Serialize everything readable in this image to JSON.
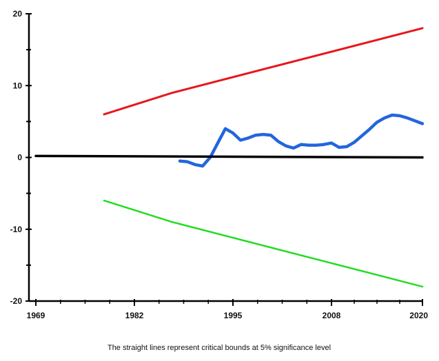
{
  "chart_data": {
    "type": "line",
    "title": "",
    "xlabel": "",
    "ylabel": "",
    "caption": "The straight lines represent critical bounds at 5% significance level",
    "x_ticks": [
      1969,
      1982,
      1995,
      2008,
      2020
    ],
    "x_tick_labels": [
      "1969",
      "1982",
      "1995",
      "2008",
      "2020"
    ],
    "y_ticks": [
      -20,
      -10,
      0,
      10,
      20
    ],
    "y_tick_labels": [
      "-20",
      "-10",
      "0",
      "10",
      "20"
    ],
    "xlim": [
      1969,
      2020
    ],
    "ylim": [
      -20,
      20
    ],
    "grid": false,
    "legend": "none",
    "series": [
      {
        "key": "upper-bound",
        "color": "#e8161b",
        "x": [
          1978,
          1987,
          2020
        ],
        "values": [
          6,
          9,
          18
        ]
      },
      {
        "key": "lower-bound",
        "color": "#22dd22",
        "x": [
          1978,
          1987,
          2020
        ],
        "values": [
          -6,
          -9,
          -18
        ]
      },
      {
        "key": "cusum",
        "color": "#2266dd",
        "x": [
          1988,
          1989,
          1990,
          1991,
          1992,
          1993,
          1994,
          1995,
          1996,
          1997,
          1998,
          1999,
          2000,
          2001,
          2002,
          2003,
          2004,
          2005,
          2006,
          2007,
          2008,
          2009,
          2010,
          2011,
          2012,
          2013,
          2014,
          2015,
          2016,
          2017,
          2018,
          2019,
          2020
        ],
        "values": [
          -0.5,
          -0.6,
          -1.0,
          -1.2,
          0.0,
          2.0,
          4.0,
          3.4,
          2.4,
          2.7,
          3.1,
          3.2,
          3.1,
          2.2,
          1.6,
          1.3,
          1.8,
          1.7,
          1.7,
          1.8,
          2.0,
          1.4,
          1.5,
          2.1,
          3.0,
          3.9,
          4.9,
          5.5,
          5.9,
          5.8,
          5.5,
          5.1,
          4.7
        ]
      },
      {
        "key": "zero-line",
        "color": "#000000",
        "x": [
          1969,
          2020
        ],
        "values": [
          0.2,
          0.0
        ]
      }
    ]
  }
}
